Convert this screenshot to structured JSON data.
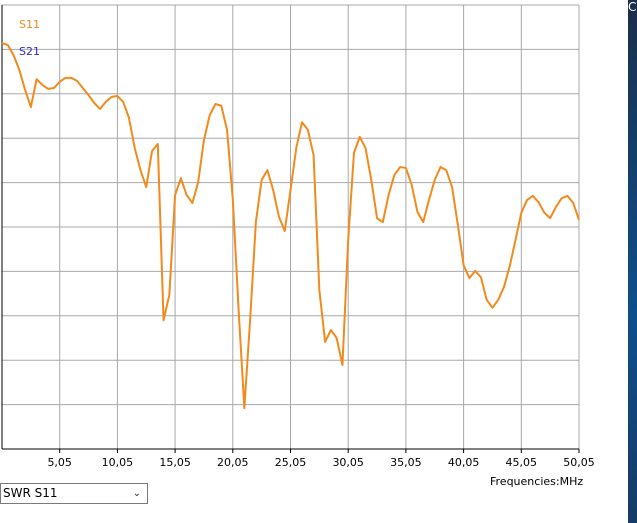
{
  "chart_data": {
    "type": "line",
    "x_label": "Frequencies:MHz",
    "x": [
      0.05,
      0.55,
      1.05,
      1.55,
      2.05,
      2.55,
      3.05,
      3.55,
      4.05,
      4.55,
      5.05,
      5.55,
      6.05,
      6.55,
      7.05,
      7.55,
      8.05,
      8.55,
      9.05,
      9.55,
      10.05,
      10.55,
      11.05,
      11.55,
      12.05,
      12.55,
      13.05,
      13.55,
      14.05,
      14.55,
      15.05,
      15.55,
      16.05,
      16.55,
      17.05,
      17.55,
      18.05,
      18.55,
      19.05,
      19.55,
      20.05,
      20.55,
      21.05,
      21.55,
      22.05,
      22.55,
      23.05,
      23.55,
      24.05,
      24.55,
      25.05,
      25.55,
      26.05,
      26.55,
      27.05,
      27.55,
      28.05,
      28.55,
      29.05,
      29.55,
      30.05,
      30.55,
      31.05,
      31.55,
      32.05,
      32.55,
      33.05,
      33.55,
      34.05,
      34.55,
      35.05,
      35.55,
      36.05,
      36.55,
      37.05,
      37.55,
      38.05,
      38.55,
      39.05,
      39.55,
      40.05,
      40.55,
      41.05,
      41.55,
      42.05,
      42.55,
      43.05,
      43.55,
      44.05,
      44.55,
      45.05,
      45.55,
      46.05,
      46.55,
      47.05,
      47.55,
      48.05,
      48.55,
      49.05,
      49.55,
      50.05
    ],
    "series": [
      {
        "name": "S11",
        "color": "#f28a1c",
        "values": [
          9.14,
          9.1,
          8.87,
          8.54,
          8.09,
          7.7,
          8.33,
          8.2,
          8.11,
          8.13,
          8.27,
          8.36,
          8.36,
          8.29,
          8.13,
          7.97,
          7.79,
          7.66,
          7.82,
          7.93,
          7.95,
          7.82,
          7.46,
          6.78,
          6.28,
          5.9,
          6.71,
          6.87,
          2.9,
          3.47,
          5.72,
          6.1,
          5.72,
          5.54,
          6.01,
          6.96,
          7.52,
          7.77,
          7.73,
          7.19,
          5.63,
          3.15,
          0.92,
          2.9,
          5.11,
          6.06,
          6.28,
          5.83,
          5.23,
          4.91,
          5.83,
          6.78,
          7.36,
          7.19,
          6.62,
          3.58,
          2.41,
          2.68,
          2.5,
          1.89,
          4.71,
          6.67,
          7.03,
          6.78,
          6.06,
          5.2,
          5.11,
          5.72,
          6.17,
          6.35,
          6.33,
          5.95,
          5.34,
          5.11,
          5.61,
          6.06,
          6.35,
          6.28,
          5.9,
          5.05,
          4.14,
          3.85,
          4.01,
          3.87,
          3.36,
          3.18,
          3.36,
          3.65,
          4.12,
          4.71,
          5.32,
          5.61,
          5.7,
          5.56,
          5.32,
          5.2,
          5.45,
          5.65,
          5.7,
          5.54,
          5.16
        ]
      },
      {
        "name": "S21",
        "color": "#2b2bd0",
        "values": [
          null,
          null,
          null,
          null,
          null,
          null,
          null,
          null,
          null,
          null,
          null,
          null,
          null,
          null,
          null,
          null,
          null,
          null,
          null,
          null,
          null,
          null,
          null,
          null,
          null,
          null,
          null,
          null,
          null,
          null,
          null,
          null,
          null,
          null,
          null,
          null,
          null,
          null,
          null,
          null,
          null,
          null,
          null,
          null,
          null,
          null,
          null,
          null,
          null,
          null,
          null,
          null,
          null,
          null,
          null,
          null,
          null,
          null,
          null,
          null,
          null,
          null,
          null,
          null,
          null,
          null,
          null,
          null,
          null,
          null,
          null,
          null,
          null,
          null,
          null,
          null,
          null,
          null,
          null,
          null,
          null,
          null,
          null,
          null,
          null,
          null,
          null,
          null,
          null,
          null,
          null,
          null,
          null,
          null,
          null,
          null,
          null,
          null,
          null,
          null,
          null
        ]
      }
    ],
    "xlim": [
      0.05,
      50.05
    ],
    "ylim": [
      0,
      10
    ],
    "xticks": [
      {
        "value": 5.05,
        "label": "5,05"
      },
      {
        "value": 10.05,
        "label": "10,05"
      },
      {
        "value": 15.05,
        "label": "15,05"
      },
      {
        "value": 20.05,
        "label": "20,05"
      },
      {
        "value": 25.05,
        "label": "25,05"
      },
      {
        "value": 30.05,
        "label": "30,05"
      },
      {
        "value": 35.05,
        "label": "35,05"
      },
      {
        "value": 40.05,
        "label": "40,05"
      },
      {
        "value": 45.05,
        "label": "45,05"
      },
      {
        "value": 50.05,
        "label": "50,05"
      }
    ],
    "yticks": [
      0,
      1,
      2,
      3,
      4,
      5,
      6,
      7,
      8,
      9,
      10
    ],
    "grid": true
  },
  "dropdown": {
    "selected": "SWR S11"
  },
  "side_text": "C"
}
